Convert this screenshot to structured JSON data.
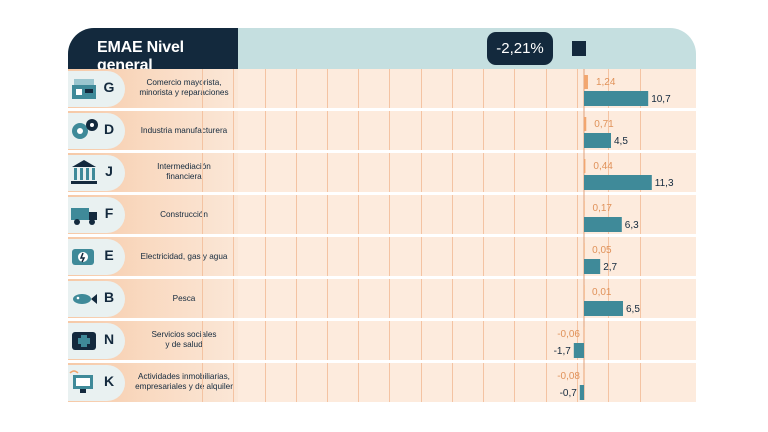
{
  "title": "EMAE Nivel general",
  "total_label": "-2,21%",
  "colors": {
    "navy": "#13293d",
    "teal": "#3f8a99",
    "orange": "#f2a66f",
    "orange_text": "#e0925a",
    "header": "#c5dfe0",
    "row_bg": "#fdebdd",
    "label_bg": "#f8d3b6"
  },
  "chart_data": {
    "type": "bar",
    "title": "EMAE Nivel general",
    "total": -2.21,
    "categories": [
      "G",
      "D",
      "J",
      "F",
      "E",
      "B",
      "N",
      "K"
    ],
    "category_names": [
      "Comercio mayorista, minorista y reparaciones",
      "Industria manufacturera",
      "Intermediación financiera",
      "Construcción",
      "Electricidad, gas y agua",
      "Pesca",
      "Servicios sociales y de salud",
      "Actividades inmobiliarias, empresariales y de alquiler"
    ],
    "series": [
      {
        "values": [
          1.24,
          0.71,
          0.44,
          0.17,
          0.05,
          0.01,
          -0.06,
          -0.08
        ],
        "labels": [
          "1,24",
          "0,71",
          "0,44",
          "0,17",
          "0,05",
          "0,01",
          "-0,06",
          "-0,08"
        ]
      },
      {
        "values": [
          10.7,
          4.5,
          11.3,
          6.3,
          2.7,
          6.5,
          -1.7,
          -0.7
        ],
        "labels": [
          "10,7",
          "4,5",
          "11,3",
          "6,3",
          "2,7",
          "6,5",
          "-1,7",
          "-0,7"
        ]
      }
    ]
  },
  "rows": [
    {
      "letter": "G",
      "name_lines": [
        "Comercio mayorista,",
        "minorista y reparaciones"
      ],
      "icon": "shop-icon"
    },
    {
      "letter": "D",
      "name_lines": [
        "Industria manufacturera"
      ],
      "icon": "gears-icon"
    },
    {
      "letter": "J",
      "name_lines": [
        "Intermediación",
        "financiera"
      ],
      "icon": "bank-icon"
    },
    {
      "letter": "F",
      "name_lines": [
        "Construcción"
      ],
      "icon": "truck-icon"
    },
    {
      "letter": "E",
      "name_lines": [
        "Electricidad, gas y agua"
      ],
      "icon": "utility-icon"
    },
    {
      "letter": "B",
      "name_lines": [
        "Pesca"
      ],
      "icon": "fish-icon"
    },
    {
      "letter": "N",
      "name_lines": [
        "Servicios sociales",
        "y de salud"
      ],
      "icon": "health-icon"
    },
    {
      "letter": "K",
      "name_lines": [
        "Actividades inmobiliarias,",
        "empresariales y de alquiler"
      ],
      "icon": "realestate-icon"
    }
  ]
}
